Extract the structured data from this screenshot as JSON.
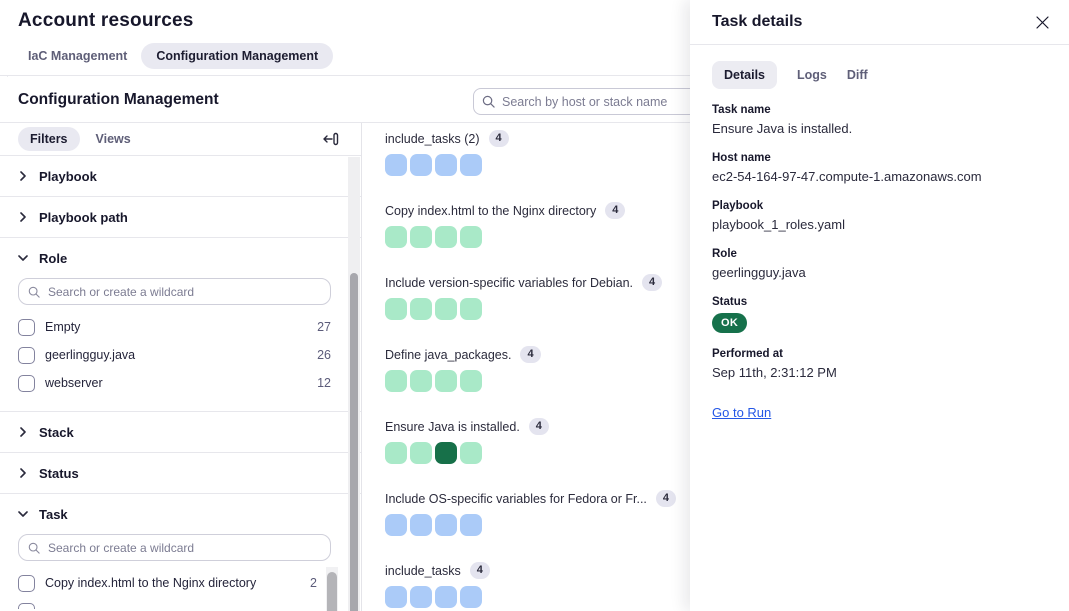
{
  "colors": {
    "cells": {
      "blue": "#abcbf8",
      "green": "#a9e9c8",
      "dark-green": "#177049"
    },
    "status_ok": "#16714b",
    "link": "#2457e6"
  },
  "page": {
    "title": "Account resources",
    "tabs": [
      {
        "label": "IaC Management"
      },
      {
        "label": "Configuration Management"
      }
    ]
  },
  "toolbar": {
    "heading": "Configuration Management",
    "search_placeholder": "Search by host or stack name"
  },
  "sidebar": {
    "tabs": [
      {
        "label": "Filters"
      },
      {
        "label": "Views"
      }
    ],
    "wildcard_placeholder": "Search or create a wildcard",
    "sections": [
      {
        "label": "Playbook"
      },
      {
        "label": "Playbook path"
      },
      {
        "label": "Role",
        "options": [
          {
            "label": "Empty",
            "count": "27"
          },
          {
            "label": "geerlingguy.java",
            "count": "26"
          },
          {
            "label": "webserver",
            "count": "12"
          }
        ]
      },
      {
        "label": "Stack"
      },
      {
        "label": "Status"
      },
      {
        "label": "Task",
        "options": [
          {
            "label": "Copy index.html to the Nginx directory",
            "count": "2"
          }
        ]
      }
    ]
  },
  "tasks": {
    "groups": [
      {
        "label": "include_tasks (2)",
        "count": "4",
        "cells": [
          "blue",
          "blue",
          "blue",
          "blue"
        ]
      },
      {
        "label": "Copy index.html to the Nginx directory",
        "count": "4",
        "cells": [
          "green",
          "green",
          "green",
          "green"
        ]
      },
      {
        "label": "Include version-specific variables for Debian.",
        "count": "4",
        "cells": [
          "green",
          "green",
          "green",
          "green"
        ]
      },
      {
        "label": "Define java_packages.",
        "count": "4",
        "cells": [
          "green",
          "green",
          "green",
          "green"
        ]
      },
      {
        "label": "Ensure Java is installed.",
        "count": "4",
        "cells": [
          "green",
          "green",
          "dark-green",
          "green"
        ]
      },
      {
        "label": "Include OS-specific variables for Fedora or Fr...",
        "count": "4",
        "cells": [
          "blue",
          "blue",
          "blue",
          "blue"
        ]
      },
      {
        "label": "include_tasks",
        "count": "4",
        "cells": [
          "blue",
          "blue",
          "blue",
          "blue"
        ]
      }
    ]
  },
  "panel": {
    "title": "Task details",
    "tabs": [
      {
        "label": "Details"
      },
      {
        "label": "Logs"
      },
      {
        "label": "Diff"
      }
    ],
    "fields": [
      {
        "label": "Task name",
        "value": "Ensure Java is installed."
      },
      {
        "label": "Host name",
        "value": "ec2-54-164-97-47.compute-1.amazonaws.com"
      },
      {
        "label": "Playbook",
        "value": "playbook_1_roles.yaml"
      },
      {
        "label": "Role",
        "value": "geerlingguy.java"
      },
      {
        "label": "Status",
        "value": "OK"
      },
      {
        "label": "Performed at",
        "value": "Sep 11th, 2:31:12 PM"
      }
    ],
    "link_label": "Go to Run"
  }
}
